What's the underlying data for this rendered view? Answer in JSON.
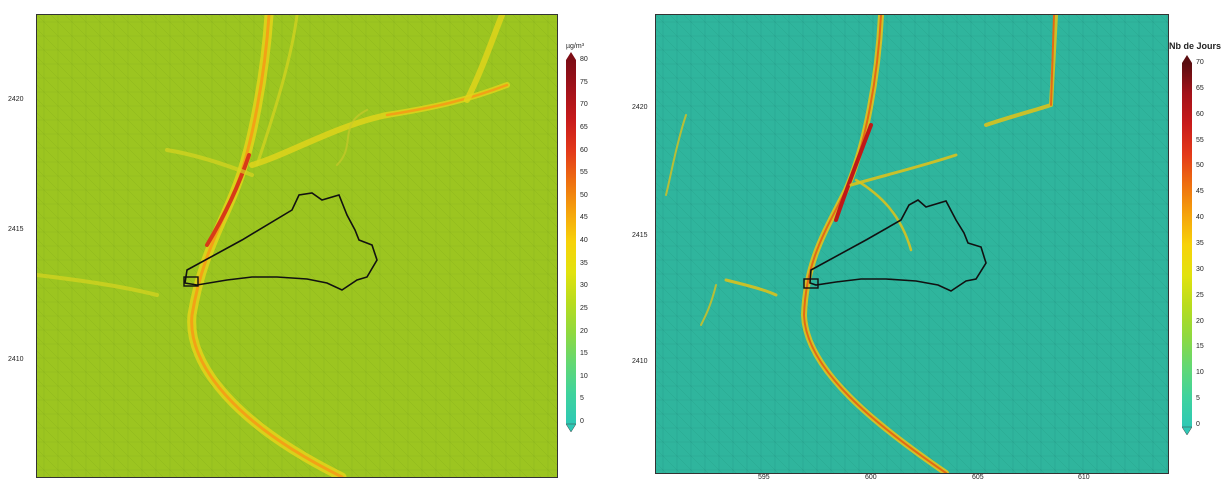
{
  "left_map": {
    "y_ticks": [
      "2420",
      "2415",
      "2410"
    ],
    "x_ticks": [
      "",
      "",
      "",
      ""
    ],
    "colorbar": {
      "title": "µg/m³",
      "ticks": [
        "80",
        "75",
        "70",
        "65",
        "60",
        "55",
        "50",
        "45",
        "40",
        "35",
        "30",
        "25",
        "20",
        "15",
        "10",
        "5",
        "0"
      ],
      "colors": [
        "#2ec8b5",
        "#3fd39d",
        "#63d873",
        "#8fd93f",
        "#b8dc1e",
        "#e2e20e",
        "#f7d20a",
        "#f5a30c",
        "#ee6f10",
        "#e3391a",
        "#c81b1b",
        "#a3121a",
        "#7d0d16"
      ]
    },
    "base_color": "#9cc520"
  },
  "right_map": {
    "y_ticks": [
      "2420",
      "2415",
      "2410"
    ],
    "x_ticks": [
      "595",
      "600",
      "605",
      "610"
    ],
    "colorbar": {
      "title": "Nb de Jours",
      "ticks": [
        "70",
        "65",
        "60",
        "55",
        "50",
        "45",
        "40",
        "35",
        "30",
        "25",
        "20",
        "15",
        "10",
        "5",
        "0"
      ],
      "colors": [
        "#2ec8b5",
        "#3fd39d",
        "#63d873",
        "#8fd93f",
        "#b8dc1e",
        "#e2e20e",
        "#f7d20a",
        "#f5a30c",
        "#ee6f10",
        "#e3391a",
        "#c81b1b",
        "#a3121a",
        "#5a0d10"
      ]
    },
    "base_color": "#2fb59d"
  }
}
